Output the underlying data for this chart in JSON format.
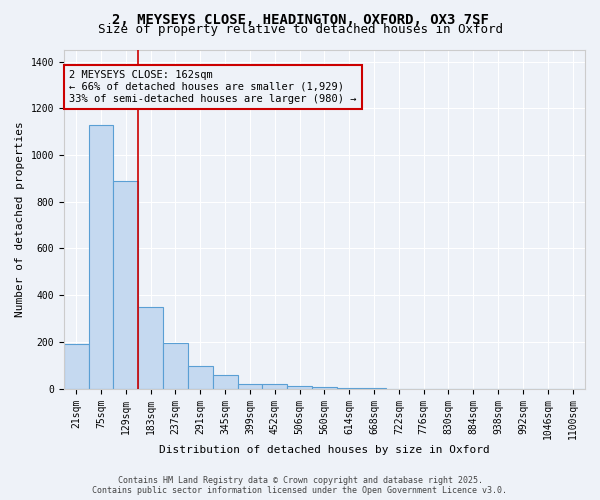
{
  "title_line1": "2, MEYSEYS CLOSE, HEADINGTON, OXFORD, OX3 7SF",
  "title_line2": "Size of property relative to detached houses in Oxford",
  "xlabel": "Distribution of detached houses by size in Oxford",
  "ylabel": "Number of detached properties",
  "bar_color": "#c5d9f0",
  "bar_edge_color": "#5a9fd4",
  "categories": [
    "21sqm",
    "75sqm",
    "129sqm",
    "183sqm",
    "237sqm",
    "291sqm",
    "345sqm",
    "399sqm",
    "452sqm",
    "506sqm",
    "560sqm",
    "614sqm",
    "668sqm",
    "722sqm",
    "776sqm",
    "830sqm",
    "884sqm",
    "938sqm",
    "992sqm",
    "1046sqm",
    "1100sqm"
  ],
  "values": [
    190,
    1130,
    890,
    350,
    195,
    95,
    60,
    20,
    18,
    10,
    5,
    2,
    1,
    0,
    0,
    0,
    0,
    0,
    0,
    0,
    0
  ],
  "ylim": [
    0,
    1450
  ],
  "yticks": [
    0,
    200,
    400,
    600,
    800,
    1000,
    1200,
    1400
  ],
  "vline_index": 3,
  "vline_color": "#cc0000",
  "annotation_text": "2 MEYSEYS CLOSE: 162sqm\n← 66% of detached houses are smaller (1,929)\n33% of semi-detached houses are larger (980) →",
  "annotation_box_color": "#cc0000",
  "bg_color": "#eef2f8",
  "grid_color": "#ffffff",
  "footer_text": "Contains HM Land Registry data © Crown copyright and database right 2025.\nContains public sector information licensed under the Open Government Licence v3.0.",
  "title_fontsize": 10,
  "subtitle_fontsize": 9,
  "axis_label_fontsize": 8,
  "tick_fontsize": 7,
  "annotation_fontsize": 7.5
}
